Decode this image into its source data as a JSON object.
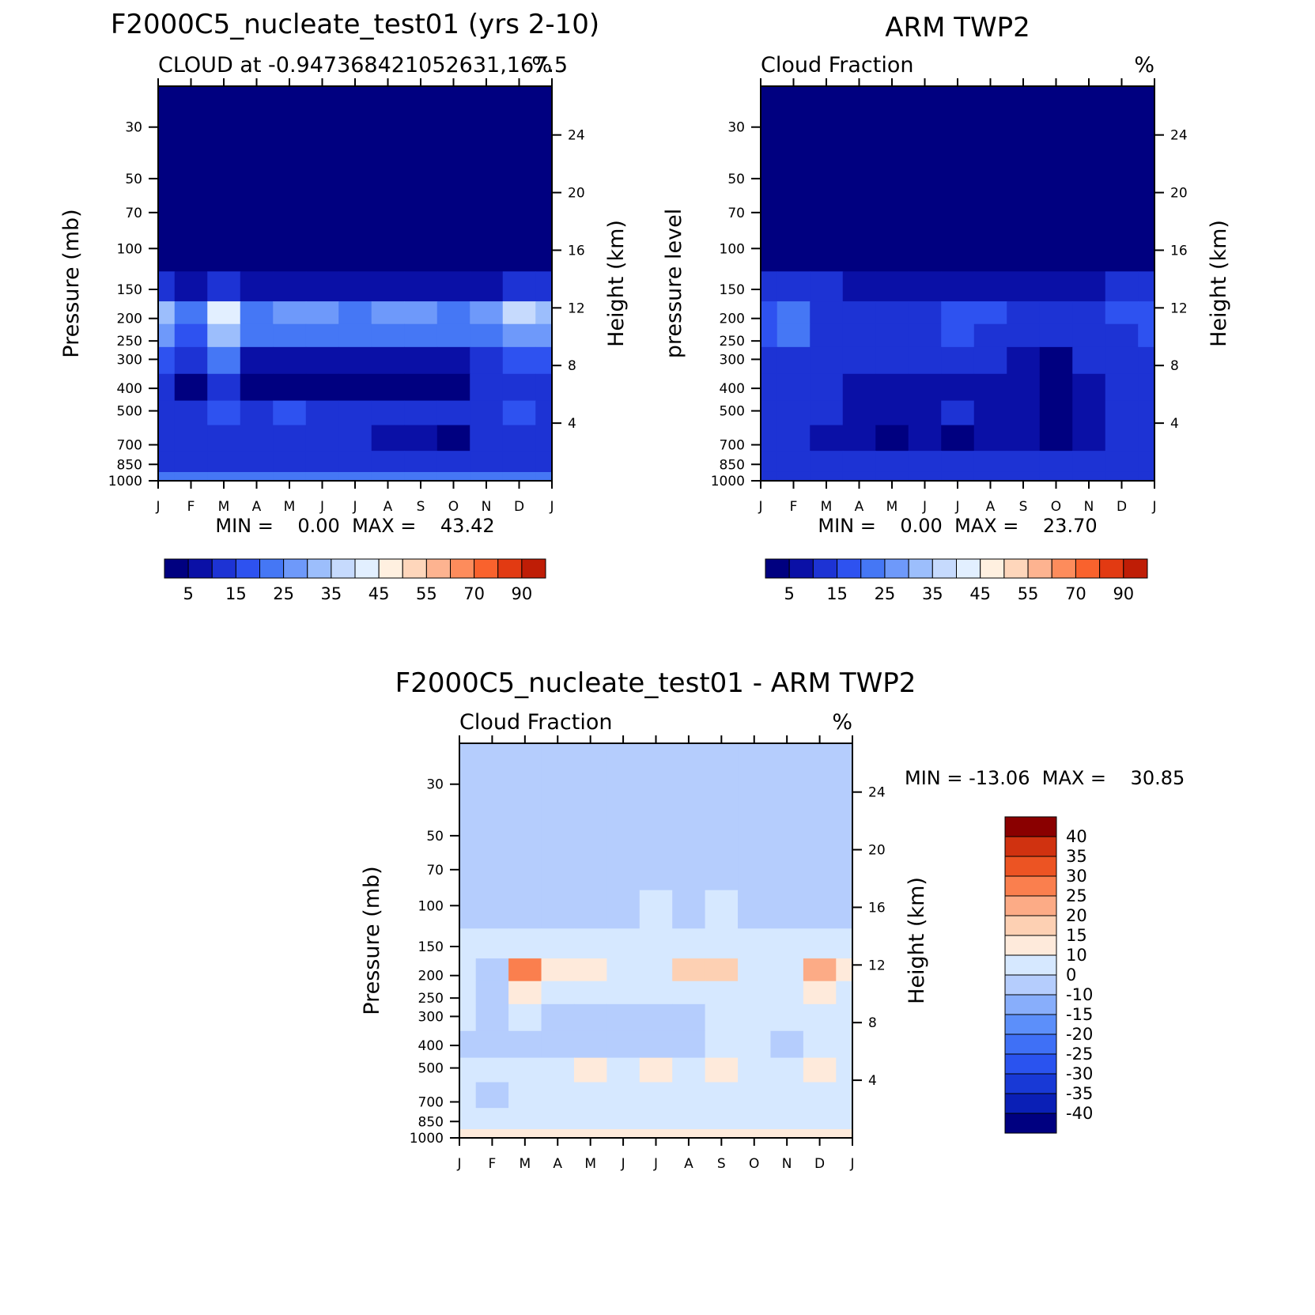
{
  "chart_data": [
    {
      "type": "heatmap",
      "title": "F2000C5_nucleate_test01 (yrs 2-10)",
      "subtitle_left": "CLOUD at -0.947368421052631,167.5",
      "subtitle_right": "%",
      "ylabel": "Pressure (mb)",
      "y2label": "Height (km)",
      "stats": "MIN =    0.00  MAX =    43.42",
      "x": [
        "J",
        "F",
        "M",
        "A",
        "M",
        "J",
        "J",
        "A",
        "S",
        "O",
        "N",
        "D",
        "J"
      ],
      "y_pressure_ticks": [
        30,
        50,
        70,
        100,
        150,
        200,
        250,
        300,
        400,
        500,
        700,
        850,
        1000
      ],
      "y_height_ticks": [
        4,
        8,
        12,
        16,
        20,
        24
      ],
      "colorbar_labels": [
        "5",
        "15",
        "25",
        "35",
        "45",
        "55",
        "70",
        "90"
      ],
      "levels": [
        5,
        10,
        15,
        20,
        25,
        30,
        35,
        40,
        45,
        50,
        55,
        60,
        70,
        80,
        90
      ],
      "values": [
        [
          0,
          0,
          0,
          0,
          0,
          0,
          0,
          0,
          0,
          0,
          0,
          0,
          0
        ],
        [
          0,
          0,
          0,
          0,
          0,
          0,
          0,
          0,
          0,
          0,
          0,
          0,
          0
        ],
        [
          0,
          0,
          0,
          0,
          0,
          0,
          0,
          0,
          0,
          0,
          0,
          0,
          0
        ],
        [
          1,
          1,
          1,
          1,
          1,
          1,
          1,
          1,
          1,
          1,
          1,
          1,
          1
        ],
        [
          12,
          8,
          12,
          8,
          8,
          8,
          8,
          8,
          8,
          8,
          8,
          12,
          12
        ],
        [
          33,
          20,
          42,
          22,
          26,
          26,
          22,
          28,
          28,
          22,
          28,
          35,
          33
        ],
        [
          25,
          18,
          30,
          22,
          22,
          22,
          22,
          24,
          24,
          20,
          22,
          28,
          25
        ],
        [
          18,
          12,
          20,
          8,
          8,
          8,
          8,
          8,
          8,
          8,
          12,
          16,
          18
        ],
        [
          12,
          4,
          12,
          4,
          4,
          4,
          4,
          4,
          4,
          4,
          12,
          12,
          12
        ],
        [
          12,
          10,
          15,
          12,
          15,
          12,
          12,
          12,
          12,
          12,
          12,
          18,
          12
        ],
        [
          10,
          10,
          10,
          10,
          10,
          10,
          10,
          8,
          8,
          4,
          10,
          10,
          10
        ],
        [
          12,
          12,
          12,
          12,
          12,
          12,
          12,
          12,
          12,
          12,
          12,
          12,
          12
        ],
        [
          22,
          22,
          22,
          22,
          22,
          22,
          22,
          22,
          22,
          22,
          22,
          22,
          22
        ]
      ]
    },
    {
      "type": "heatmap",
      "title": "ARM TWP2",
      "subtitle_left": "Cloud Fraction",
      "subtitle_right": "%",
      "ylabel": "pressure level",
      "y2label": "Height (km)",
      "stats": "MIN =    0.00  MAX =    23.70",
      "x": [
        "J",
        "F",
        "M",
        "A",
        "M",
        "J",
        "J",
        "A",
        "S",
        "O",
        "N",
        "D",
        "J"
      ],
      "y_pressure_ticks": [
        30,
        50,
        70,
        100,
        150,
        200,
        250,
        300,
        400,
        500,
        700,
        850,
        1000
      ],
      "y_height_ticks": [
        4,
        8,
        12,
        16,
        20,
        24
      ],
      "colorbar_labels": [
        "5",
        "15",
        "25",
        "35",
        "45",
        "55",
        "70",
        "90"
      ],
      "levels": [
        5,
        10,
        15,
        20,
        25,
        30,
        35,
        40,
        45,
        50,
        55,
        60,
        70,
        80,
        90
      ],
      "values": [
        [
          0,
          0,
          0,
          0,
          0,
          0,
          0,
          0,
          0,
          0,
          0,
          0,
          0
        ],
        [
          0,
          0,
          0,
          0,
          0,
          0,
          0,
          0,
          0,
          0,
          0,
          0,
          0
        ],
        [
          0,
          0,
          0,
          0,
          0,
          0,
          0,
          0,
          0,
          0,
          0,
          0,
          0
        ],
        [
          2,
          1,
          1,
          1,
          1,
          1,
          1,
          1,
          1,
          1,
          1,
          1,
          2
        ],
        [
          12,
          12,
          10,
          8,
          8,
          8,
          8,
          8,
          6,
          8,
          8,
          10,
          12
        ],
        [
          16,
          22,
          14,
          12,
          12,
          14,
          18,
          16,
          12,
          12,
          14,
          16,
          18
        ],
        [
          16,
          20,
          14,
          12,
          12,
          13,
          15,
          14,
          12,
          10,
          12,
          14,
          15
        ],
        [
          14,
          14,
          12,
          10,
          10,
          10,
          10,
          10,
          8,
          4,
          10,
          12,
          12
        ],
        [
          12,
          14,
          10,
          8,
          8,
          8,
          8,
          8,
          6,
          3,
          8,
          10,
          12
        ],
        [
          12,
          10,
          10,
          8,
          8,
          8,
          10,
          8,
          6,
          3,
          8,
          10,
          12
        ],
        [
          10,
          10,
          8,
          8,
          4,
          8,
          4,
          8,
          8,
          3,
          8,
          10,
          10
        ],
        [
          12,
          12,
          10,
          10,
          10,
          10,
          10,
          10,
          10,
          10,
          10,
          10,
          12
        ],
        [
          12,
          12,
          12,
          12,
          12,
          12,
          12,
          12,
          12,
          12,
          12,
          12,
          12
        ]
      ]
    },
    {
      "type": "heatmap",
      "title": "F2000C5_nucleate_test01 - ARM TWP2",
      "subtitle_left": "Cloud Fraction",
      "subtitle_right": "%",
      "ylabel": "Pressure (mb)",
      "y2label": "Height (km)",
      "stats": "MIN = -13.06  MAX =    30.85",
      "x": [
        "J",
        "F",
        "M",
        "A",
        "M",
        "J",
        "J",
        "A",
        "S",
        "O",
        "N",
        "D",
        "J"
      ],
      "y_pressure_ticks": [
        30,
        50,
        70,
        100,
        150,
        200,
        250,
        300,
        400,
        500,
        700,
        850,
        1000
      ],
      "y_height_ticks": [
        4,
        8,
        12,
        16,
        20,
        24
      ],
      "colorbar_labels": [
        "40",
        "35",
        "30",
        "25",
        "20",
        "15",
        "10",
        "0",
        "-10",
        "-15",
        "-20",
        "-25",
        "-30",
        "-35",
        "-40"
      ],
      "levels": [
        -40,
        -35,
        -30,
        -25,
        -20,
        -15,
        -10,
        0,
        10,
        15,
        20,
        25,
        30,
        35,
        40
      ],
      "values": [
        [
          -1,
          -1,
          -1,
          -1,
          -1,
          -1,
          -1,
          -1,
          -1,
          -1,
          -1,
          -1,
          -1
        ],
        [
          -1,
          -1,
          -1,
          -1,
          -1,
          -1,
          -1,
          -1,
          -1,
          -1,
          -1,
          -1,
          -1
        ],
        [
          -1,
          -1,
          -1,
          -1,
          -1,
          -1,
          -1,
          -1,
          -1,
          -1,
          -1,
          -1,
          -1
        ],
        [
          -1,
          -1,
          -1,
          -1,
          -1,
          -1,
          1,
          -1,
          1,
          -1,
          -1,
          -1,
          -1
        ],
        [
          3,
          2,
          8,
          3,
          3,
          3,
          3,
          3,
          5,
          3,
          3,
          4,
          3
        ],
        [
          6,
          -2,
          26,
          12,
          14,
          8,
          8,
          16,
          18,
          8,
          8,
          21,
          12
        ],
        [
          2,
          -6,
          14,
          8,
          6,
          4,
          4,
          6,
          8,
          4,
          4,
          12,
          8
        ],
        [
          2,
          -6,
          4,
          -2,
          -2,
          -2,
          -2,
          -2,
          3,
          3,
          3,
          3,
          3
        ],
        [
          -1,
          -3,
          -2,
          -2,
          -2,
          -2,
          -2,
          -1,
          3,
          3,
          -2,
          3,
          3
        ],
        [
          1,
          1,
          4,
          5,
          12,
          6,
          11,
          4,
          11,
          6,
          4,
          12,
          4
        ],
        [
          3,
          -1,
          4,
          4,
          4,
          4,
          4,
          4,
          3,
          4,
          4,
          4,
          4
        ],
        [
          3,
          3,
          3,
          3,
          3,
          3,
          3,
          3,
          3,
          3,
          3,
          3,
          3
        ],
        [
          10,
          10,
          10,
          10,
          10,
          10,
          10,
          10,
          10,
          10,
          10,
          10,
          10
        ]
      ]
    }
  ]
}
